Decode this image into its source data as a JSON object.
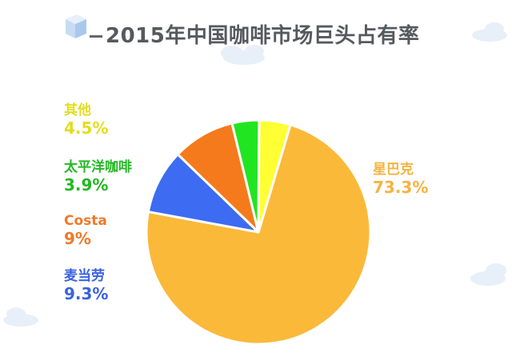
{
  "title": "2015年中国咖啡市场巨头占有率",
  "chart_data": {
    "type": "pie",
    "title": "2015年中国咖啡市场巨头占有率",
    "slices": [
      {
        "name": "星巴克",
        "value": 73.3,
        "label": "73.3%",
        "color": "#fbb93a",
        "label_color": "#f5b341"
      },
      {
        "name": "麦当劳",
        "value": 9.3,
        "label": "9.3%",
        "color": "#3d6cf3",
        "label_color": "#3a62e0"
      },
      {
        "name": "Costa",
        "value": 9,
        "label": "9%",
        "color": "#f57a1c",
        "label_color": "#ee7a2a"
      },
      {
        "name": "太平洋咖啡",
        "value": 3.9,
        "label": "3.9%",
        "color": "#22e522",
        "label_color": "#23b823"
      },
      {
        "name": "其他",
        "value": 4.5,
        "label": "4.5%",
        "color": "#ffff33",
        "label_color": "#e2de1c"
      }
    ]
  }
}
